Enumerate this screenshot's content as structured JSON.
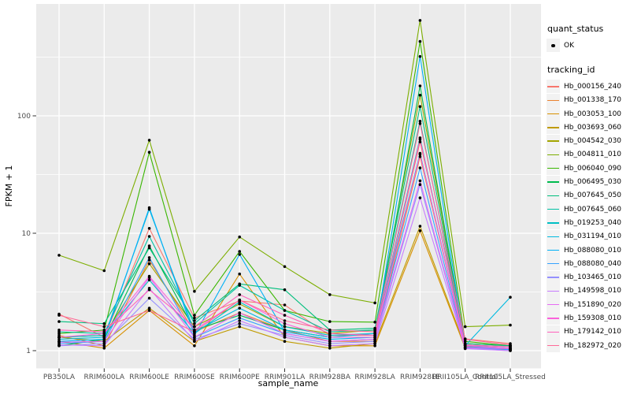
{
  "chart_data": {
    "type": "line",
    "title": "",
    "xlabel": "sample_name",
    "ylabel": "FPKM + 1",
    "y_scale": "log10",
    "y_ticks": [
      {
        "label": "1",
        "value": 1
      },
      {
        "label": "10",
        "value": 10
      },
      {
        "label": "100",
        "value": 100
      }
    ],
    "y_minor_ticks": [
      3.162,
      31.62,
      316.2
    ],
    "ylim_log10": [
      -0.15,
      2.95
    ],
    "grid": "white major+minor on gray panel",
    "legend_position": "right",
    "categories": [
      "PB350LA",
      "RRIM600LA",
      "RRIM600LE",
      "RRIM600SE",
      "RRIM600PE",
      "RRIM901LA",
      "RRIM928BA",
      "RRIM928LA",
      "RRIM928LE",
      "RRII105LA_Control",
      "RRII105LA_Stressed"
    ],
    "series": [
      {
        "name": "Hb_000156_240",
        "color": "#F8766D",
        "values": [
          2.05,
          1.3,
          11.0,
          1.9,
          2.65,
          2.45,
          1.35,
          1.35,
          60,
          1.26,
          1.15
        ]
      },
      {
        "name": "Hb_001338_170",
        "color": "#EA8331",
        "values": [
          1.35,
          1.1,
          5.9,
          1.45,
          2.1,
          1.5,
          1.2,
          1.2,
          45,
          1.1,
          1.05
        ]
      },
      {
        "name": "Hb_003053_100",
        "color": "#D89000",
        "values": [
          1.2,
          1.05,
          2.2,
          1.1,
          4.5,
          1.3,
          1.1,
          1.1,
          10.5,
          1.05,
          1.02
        ]
      },
      {
        "name": "Hb_003693_060",
        "color": "#C09B00",
        "values": [
          1.3,
          1.2,
          2.3,
          1.2,
          1.6,
          1.2,
          1.05,
          1.15,
          11.5,
          1.08,
          1.02
        ]
      },
      {
        "name": "Hb_004542_030",
        "color": "#A3A500",
        "values": [
          1.3,
          1.35,
          5.5,
          1.6,
          2.5,
          1.6,
          1.4,
          1.5,
          150,
          1.15,
          1.1
        ]
      },
      {
        "name": "Hb_004811_010",
        "color": "#7CAE00",
        "values": [
          6.5,
          4.8,
          62,
          3.2,
          9.3,
          5.2,
          3.0,
          2.55,
          650,
          1.6,
          1.65
        ]
      },
      {
        "name": "Hb_006040_090",
        "color": "#39B600",
        "values": [
          1.4,
          1.5,
          49,
          2.0,
          7.0,
          2.2,
          1.77,
          1.75,
          430,
          1.2,
          1.1
        ]
      },
      {
        "name": "Hb_006495_030",
        "color": "#00BB4E",
        "values": [
          1.1,
          1.25,
          7.8,
          1.5,
          2.0,
          1.5,
          1.3,
          1.3,
          180,
          1.1,
          1.02
        ]
      },
      {
        "name": "Hb_007645_050",
        "color": "#00BF7D",
        "values": [
          1.77,
          1.7,
          7.5,
          1.8,
          3.7,
          3.3,
          1.5,
          1.55,
          120,
          1.15,
          1.1
        ]
      },
      {
        "name": "Hb_007645_060",
        "color": "#00C1A3",
        "values": [
          1.45,
          1.4,
          9.4,
          1.7,
          3.6,
          2.2,
          1.45,
          1.5,
          90,
          1.12,
          1.08
        ]
      },
      {
        "name": "Hb_019253_040",
        "color": "#00BFC4",
        "values": [
          1.3,
          1.35,
          4.0,
          1.4,
          2.6,
          1.6,
          1.35,
          1.4,
          65,
          1.1,
          1.05
        ]
      },
      {
        "name": "Hb_031194_010",
        "color": "#00BAE0",
        "values": [
          1.25,
          1.3,
          16.0,
          1.45,
          2.3,
          1.5,
          1.3,
          1.4,
          48,
          1.1,
          2.85
        ]
      },
      {
        "name": "Hb_088080_010",
        "color": "#00B0F6",
        "values": [
          1.2,
          1.25,
          16.5,
          1.35,
          6.6,
          1.45,
          1.25,
          1.3,
          320,
          1.07,
          1.05
        ]
      },
      {
        "name": "Hb_088080_040",
        "color": "#35A2FF",
        "values": [
          1.15,
          1.2,
          6.2,
          1.3,
          1.9,
          1.4,
          1.2,
          1.25,
          36,
          1.06,
          1.02
        ]
      },
      {
        "name": "Hb_103465_010",
        "color": "#9590FF",
        "values": [
          1.1,
          1.15,
          2.8,
          1.25,
          1.7,
          1.35,
          1.15,
          1.2,
          26,
          1.05,
          1.0
        ]
      },
      {
        "name": "Hb_149598_010",
        "color": "#C77CFF",
        "values": [
          1.12,
          1.1,
          3.4,
          1.2,
          1.8,
          1.3,
          1.1,
          1.15,
          20,
          1.04,
          1.0
        ]
      },
      {
        "name": "Hb_151890_020",
        "color": "#E76BF3",
        "values": [
          1.18,
          1.2,
          4.2,
          1.3,
          2.1,
          1.4,
          1.2,
          1.25,
          28,
          1.06,
          1.04
        ]
      },
      {
        "name": "Hb_159308_010",
        "color": "#FA62DB",
        "values": [
          1.3,
          1.4,
          4.3,
          1.5,
          2.7,
          1.7,
          1.3,
          1.3,
          47,
          1.1,
          1.05
        ]
      },
      {
        "name": "Hb_179142_010",
        "color": "#FF62BC",
        "values": [
          1.5,
          1.45,
          3.3,
          1.6,
          3.0,
          2.0,
          1.4,
          1.35,
          63,
          1.12,
          1.08
        ]
      },
      {
        "name": "Hb_182972_020",
        "color": "#FF6A98",
        "values": [
          2.0,
          1.6,
          2.2,
          1.45,
          2.7,
          1.8,
          1.5,
          1.45,
          86,
          1.25,
          1.12
        ]
      }
    ]
  },
  "legend": {
    "quant_status_title": "quant_status",
    "quant_status_items": [
      {
        "label": "OK",
        "symbol": "black-point"
      }
    ],
    "tracking_id_title": "tracking_id"
  },
  "colors": {
    "panel_bg": "#EBEBEB",
    "grid": "#FFFFFF",
    "legend_key_bg": "#F2F2F2",
    "tick_text": "#4D4D4D",
    "axis_title_text": "#000000",
    "point": "#000000"
  }
}
